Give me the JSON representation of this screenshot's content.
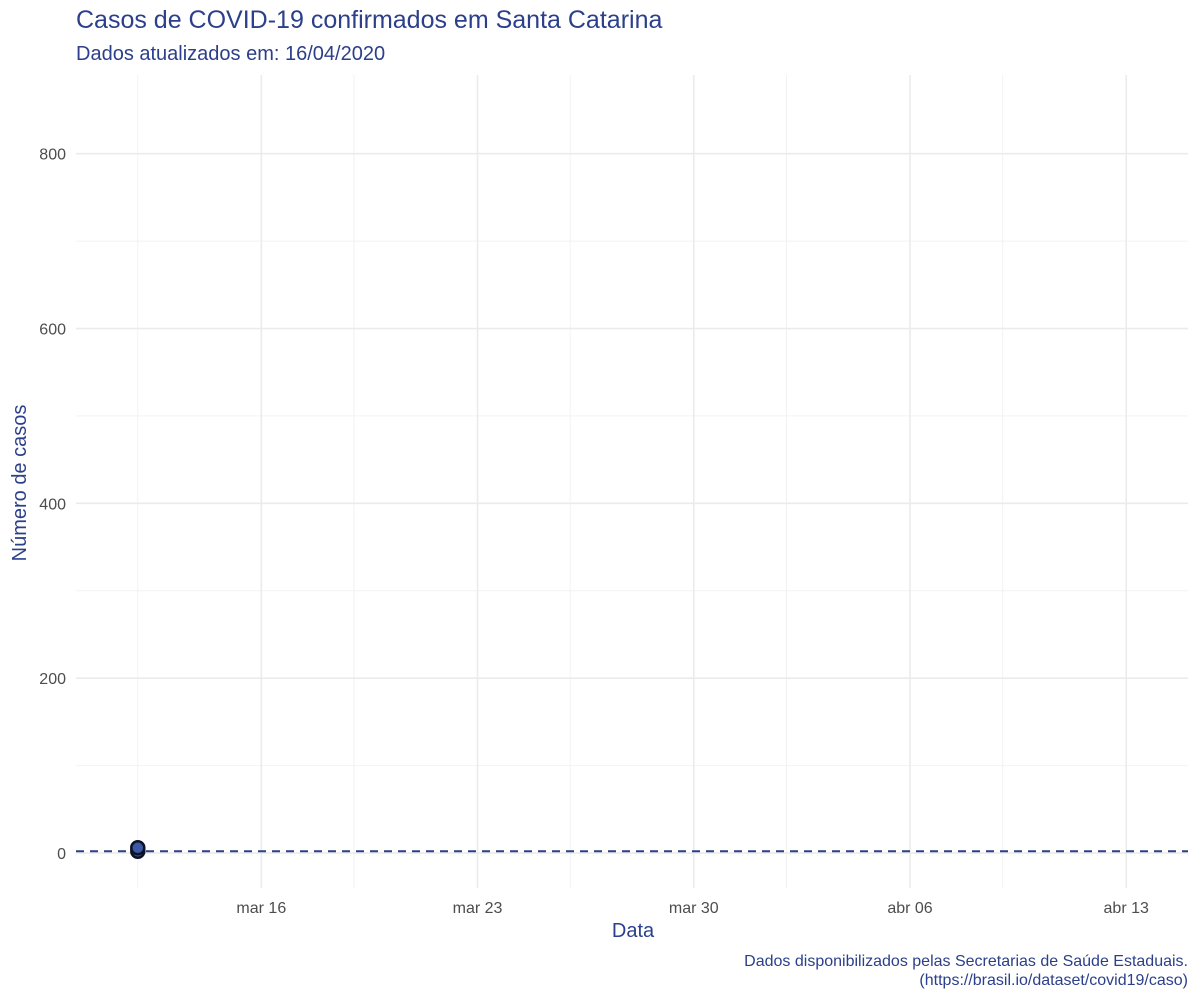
{
  "chart_data": {
    "type": "scatter",
    "title": "Casos de COVID-19 confirmados em Santa Catarina",
    "subtitle": "Dados atualizados em:  16/04/2020",
    "xlabel": "Data",
    "ylabel": "Número de casos",
    "caption_line1": "Dados disponibilizados pelas Secretarias de Saúde Estaduais.",
    "caption_line2": "(https://brasil.io/dataset/covid19/caso)",
    "x_range": [
      "2020-03-10",
      "2020-04-15"
    ],
    "ylim": [
      -40,
      890
    ],
    "x_ticks": [
      {
        "date": "2020-03-16",
        "label": "mar 16"
      },
      {
        "date": "2020-03-23",
        "label": "mar 23"
      },
      {
        "date": "2020-03-30",
        "label": "mar 30"
      },
      {
        "date": "2020-04-06",
        "label": "abr 06"
      },
      {
        "date": "2020-04-13",
        "label": "abr 13"
      }
    ],
    "x_minor_ticks": [
      "2020-03-12",
      "2020-03-19",
      "2020-03-26",
      "2020-04-02",
      "2020-04-09"
    ],
    "y_ticks": [
      0,
      200,
      400,
      600,
      800
    ],
    "y_minor_ticks": [
      100,
      300,
      500,
      700
    ],
    "grid": true,
    "reference_line": {
      "y": 2,
      "style": "dashed",
      "color": "#2b3f8a"
    },
    "series": [
      {
        "points": [
          {
            "x": "2020-03-12",
            "y": 2
          },
          {
            "x": "2020-03-12",
            "y": 6
          }
        ]
      }
    ],
    "colors": {
      "accent": "#2b3f8a",
      "point_fill": "#3a5aa8",
      "point_stroke": "#0d1326"
    }
  }
}
